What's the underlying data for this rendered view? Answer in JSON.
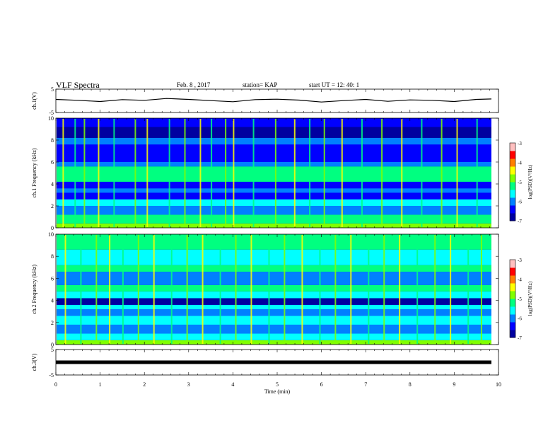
{
  "header": {
    "title": "VLF Spectra",
    "date": "Feb. 8 , 2017",
    "station": "station= KAP",
    "start": "start  UT =   12: 40: 1"
  },
  "colors": {
    "colormap": [
      "#0000a0",
      "#0000ff",
      "#0080ff",
      "#00ffff",
      "#00ff80",
      "#80ff00",
      "#ffff00",
      "#ff8000",
      "#ff0000",
      "#ffc0c0"
    ],
    "trace": "#000000",
    "background": "#ffffff"
  },
  "chart_data": [
    {
      "type": "line",
      "ylabel": "ch.1(V)",
      "ylim": [
        -5,
        5
      ],
      "y_ticks": [
        "5",
        "-5"
      ],
      "xlim": [
        0,
        10
      ],
      "x": [
        0,
        0.5,
        1,
        1.5,
        2,
        2.5,
        3,
        3.5,
        4,
        4.5,
        5,
        5.5,
        6,
        6.5,
        7,
        7.5,
        8,
        8.5,
        9,
        9.5,
        9.84
      ],
      "y": [
        0.6,
        0.2,
        -0.3,
        0.5,
        0.2,
        1.0,
        0.6,
        0.1,
        -0.4,
        0.5,
        0.7,
        0.3,
        -0.5,
        0.1,
        0.6,
        -0.2,
        0.4,
        0.2,
        -0.3,
        0.6,
        0.8
      ]
    },
    {
      "type": "heatmap",
      "ylabel": "ch.1  Frequency  (kHz)",
      "ylim": [
        0,
        10
      ],
      "y_ticks": [
        "0",
        "2",
        "4",
        "6",
        "8",
        "10"
      ],
      "xlim": [
        0,
        10
      ],
      "colorbar": {
        "label": "log(PSD)(V²/Hz)",
        "range": [
          -7,
          -3
        ],
        "ticks": [
          "-3",
          "-4",
          "-5",
          "-6",
          "-7"
        ]
      },
      "bands": [
        {
          "from": 0,
          "to": 0.4,
          "level": 5
        },
        {
          "from": 0.4,
          "to": 1.2,
          "level": 4
        },
        {
          "from": 1.2,
          "to": 2.0,
          "level": 2
        },
        {
          "from": 2.0,
          "to": 2.6,
          "level": 3
        },
        {
          "from": 2.6,
          "to": 3.2,
          "level": 1
        },
        {
          "from": 3.2,
          "to": 3.6,
          "level": 2
        },
        {
          "from": 3.6,
          "to": 4.2,
          "level": 1
        },
        {
          "from": 4.2,
          "to": 5.6,
          "level": 4
        },
        {
          "from": 5.6,
          "to": 6.0,
          "level": 2
        },
        {
          "from": 6.0,
          "to": 7.6,
          "level": 1
        },
        {
          "from": 7.6,
          "to": 8.2,
          "level": 2
        },
        {
          "from": 8.2,
          "to": 9.2,
          "level": 0
        },
        {
          "from": 9.2,
          "to": 10,
          "level": 1
        }
      ],
      "streaks": [
        0.15,
        0.42,
        0.63,
        0.95,
        1.3,
        1.78,
        2.05,
        2.55,
        2.9,
        3.25,
        3.5,
        3.82,
        4.0,
        4.45,
        4.95,
        5.38,
        5.72,
        6.05,
        6.45,
        6.9,
        7.35,
        7.8,
        8.25,
        8.7,
        9.05,
        9.5
      ]
    },
    {
      "type": "heatmap",
      "ylabel": "ch.2  Frequency  (kHz)",
      "ylim": [
        0,
        10
      ],
      "y_ticks": [
        "0",
        "2",
        "4",
        "6",
        "8",
        "10"
      ],
      "xlim": [
        0,
        10
      ],
      "colorbar": {
        "label": "log(PSD)(V²/Hz)",
        "range": [
          -7,
          -3
        ],
        "ticks": [
          "-3",
          "-4",
          "-5",
          "-6",
          "-7"
        ]
      },
      "bands": [
        {
          "from": 0,
          "to": 0.4,
          "level": 5
        },
        {
          "from": 0.4,
          "to": 1.0,
          "level": 3
        },
        {
          "from": 1.0,
          "to": 1.8,
          "level": 2
        },
        {
          "from": 1.8,
          "to": 2.6,
          "level": 3
        },
        {
          "from": 2.6,
          "to": 3.2,
          "level": 2
        },
        {
          "from": 3.2,
          "to": 3.6,
          "level": 3
        },
        {
          "from": 3.6,
          "to": 4.2,
          "level": 0
        },
        {
          "from": 4.2,
          "to": 4.8,
          "level": 3
        },
        {
          "from": 4.8,
          "to": 5.4,
          "level": 4
        },
        {
          "from": 5.4,
          "to": 6.6,
          "level": 2
        },
        {
          "from": 6.6,
          "to": 7.2,
          "level": 4
        },
        {
          "from": 7.2,
          "to": 8.6,
          "level": 3
        },
        {
          "from": 8.6,
          "to": 10,
          "level": 4
        }
      ],
      "streaks": [
        0.2,
        0.55,
        0.9,
        1.2,
        1.5,
        1.85,
        2.2,
        2.6,
        2.95,
        3.3,
        3.7,
        4.05,
        4.4,
        4.8,
        5.15,
        5.55,
        5.95,
        6.3,
        6.65,
        7.05,
        7.4,
        7.75,
        8.15,
        8.55,
        8.9,
        9.3,
        9.6
      ]
    },
    {
      "type": "line",
      "ylabel": "ch.3(V)",
      "xlabel": "Time  (min)",
      "ylim": [
        -5,
        5
      ],
      "y_ticks": [
        "5",
        "-5"
      ],
      "xlim": [
        0,
        10
      ],
      "x_ticks": [
        "0",
        "1",
        "2",
        "3",
        "4",
        "5",
        "6",
        "7",
        "8",
        "9",
        "10"
      ],
      "x": [
        0,
        9.84
      ],
      "y": [
        0,
        0
      ]
    }
  ]
}
